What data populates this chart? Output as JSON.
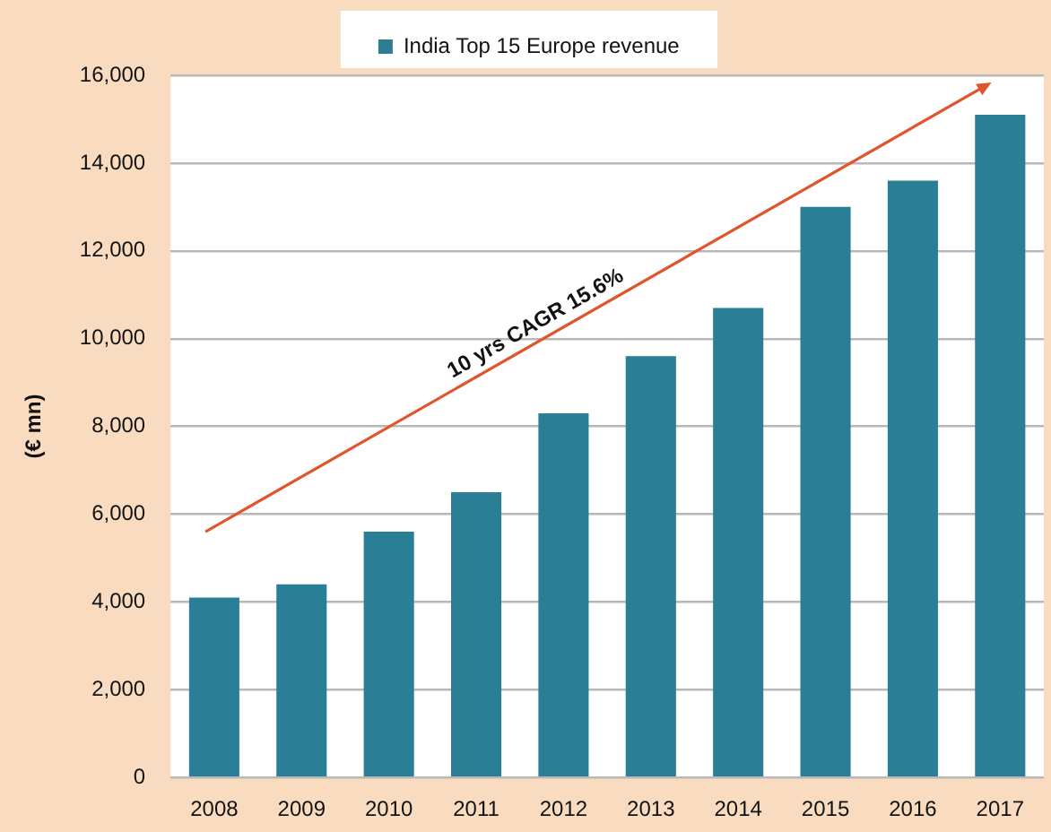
{
  "chart_data": {
    "type": "bar",
    "categories": [
      "2008",
      "2009",
      "2010",
      "2011",
      "2012",
      "2013",
      "2014",
      "2015",
      "2016",
      "2017"
    ],
    "series": [
      {
        "name": "India Top 15 Europe revenue",
        "color": "#2a7f96",
        "values": [
          4100,
          4400,
          5600,
          6500,
          8300,
          9600,
          10700,
          13000,
          13600,
          15100
        ]
      }
    ],
    "ylabel": "(€ mn)",
    "ylim": [
      0,
      16000
    ],
    "yticks": [
      0,
      {
        "value": 2000,
        "label": "2,000"
      },
      {
        "value": 4000,
        "label": "4,000"
      },
      {
        "value": 6000,
        "label": "6,000"
      },
      {
        "value": 8000,
        "label": "8,000"
      },
      {
        "value": 10000,
        "label": "10,000"
      },
      {
        "value": 12000,
        "label": "12,000"
      },
      {
        "value": 14000,
        "label": "14,000"
      },
      {
        "value": 16000,
        "label": "16,000"
      }
    ],
    "grid": "y",
    "legend": "top",
    "annotations": [
      "10 yrs CAGR 15.6%"
    ]
  }
}
